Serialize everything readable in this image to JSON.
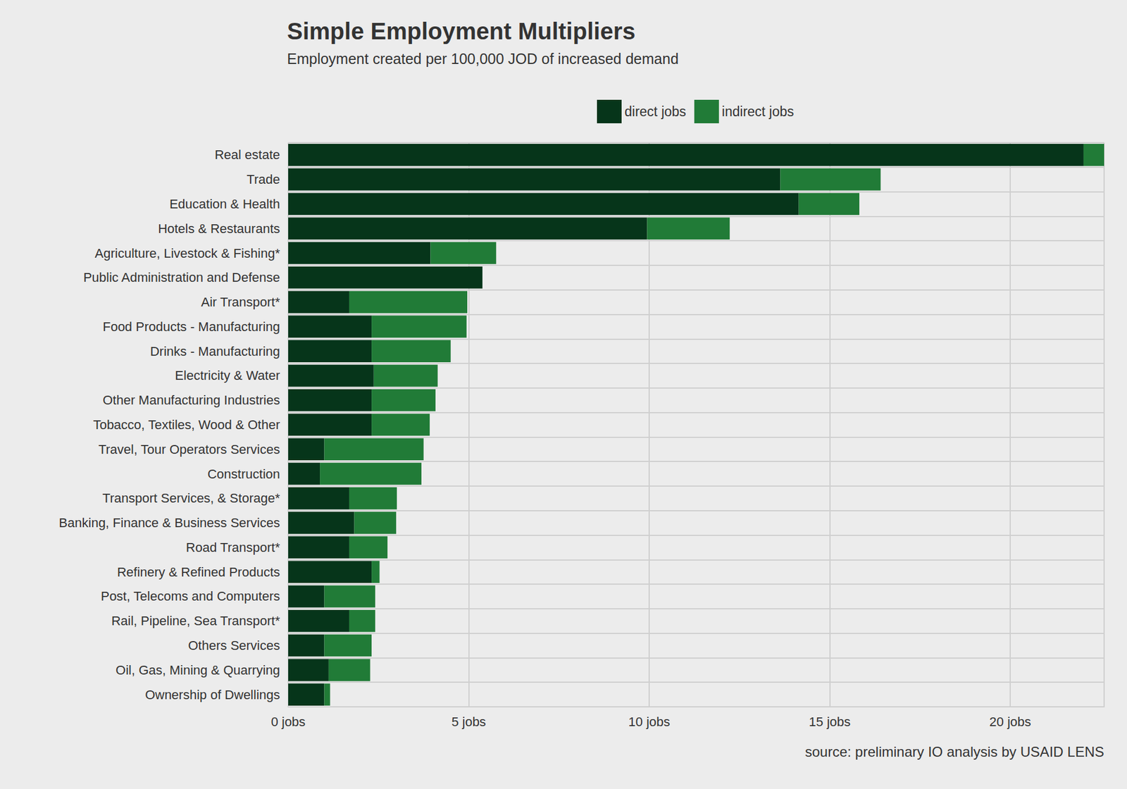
{
  "chart_data": {
    "type": "bar",
    "title": "Simple Employment Multipliers",
    "subtitle": "Employment created per 100,000 JOD of increased demand",
    "annotations": [
      "source: preliminary IO analysis by USAID LENS"
    ],
    "orientation": "horizontal",
    "stacked": true,
    "grid": true,
    "legend": "top",
    "categories": [
      "Real estate",
      "Trade",
      "Education & Health",
      "Hotels & Restaurants",
      "Agriculture, Livestock & Fishing*",
      "Public Administration and Defense",
      "Air Transport*",
      "Food Products - Manufacturing",
      "Drinks - Manufacturing",
      "Electricity & Water",
      "Other Manufacturing Industries",
      "Tobacco, Textiles, Wood & Other",
      "Travel, Tour Operators Services",
      "Construction",
      "Transport Services, & Storage*",
      "Banking, Finance & Business Services",
      "Road Transport*",
      "Refinery & Refined Products",
      "Post, Telecoms and Computers",
      "Rail, Pipeline, Sea Transport*",
      "Others Services",
      "Oil, Gas, Mining & Quarrying",
      "Ownership of Dwellings"
    ],
    "series": [
      {
        "name": "direct jobs",
        "color": "#06351a",
        "values": [
          22.03,
          13.63,
          14.14,
          9.94,
          3.94,
          5.38,
          1.69,
          2.31,
          2.31,
          2.37,
          2.31,
          2.31,
          1.0,
          0.88,
          1.69,
          1.83,
          1.69,
          2.31,
          1.0,
          1.69,
          1.0,
          1.12,
          1.0
        ]
      },
      {
        "name": "indirect jobs",
        "color": "#217b37",
        "values": [
          0.57,
          2.78,
          1.68,
          2.29,
          1.82,
          0,
          3.27,
          2.63,
          2.19,
          1.77,
          1.77,
          1.61,
          2.75,
          2.81,
          1.32,
          1.16,
          1.06,
          0.22,
          1.41,
          0.72,
          1.31,
          1.15,
          0.16
        ]
      }
    ],
    "xlim": [
      0,
      22.6
    ],
    "xticks": [
      {
        "value": 0,
        "label": "0 jobs"
      },
      {
        "value": 5,
        "label": "5 jobs"
      },
      {
        "value": 10,
        "label": "10 jobs"
      },
      {
        "value": 15,
        "label": "15 jobs"
      },
      {
        "value": 20,
        "label": "20 jobs"
      }
    ]
  }
}
